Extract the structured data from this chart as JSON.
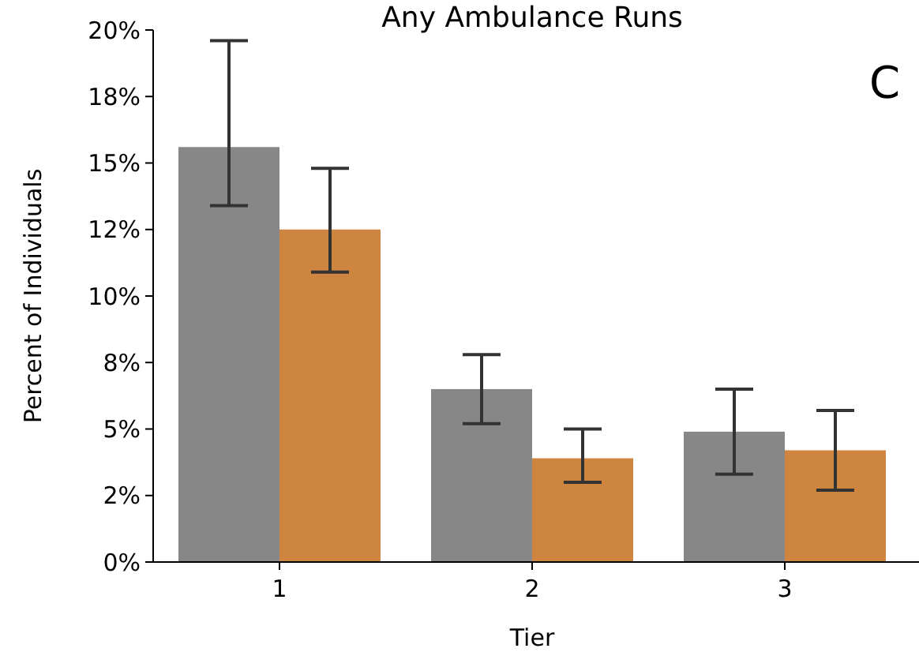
{
  "chart_data": {
    "type": "bar",
    "title": "Any Ambulance Runs",
    "xlabel": "Tier",
    "ylabel": "Percent of Individuals",
    "categories": [
      "1",
      "2",
      "3"
    ],
    "series": [
      {
        "color": "#878787",
        "values": [
          15.6,
          6.5,
          4.9
        ],
        "errors": [
          [
            13.4,
            19.6
          ],
          [
            5.2,
            7.8
          ],
          [
            3.3,
            6.5
          ]
        ]
      },
      {
        "color": "#cd8540",
        "values": [
          12.5,
          3.9,
          4.2
        ],
        "errors": [
          [
            10.9,
            14.8
          ],
          [
            3.0,
            5.0
          ],
          [
            2.7,
            5.7
          ]
        ]
      }
    ],
    "ylim": [
      0,
      20
    ],
    "yticks": [
      {
        "value": 0,
        "label": "0%"
      },
      {
        "value": 2.5,
        "label": "2%"
      },
      {
        "value": 5,
        "label": "5%"
      },
      {
        "value": 7.5,
        "label": "8%"
      },
      {
        "value": 10,
        "label": "10%"
      },
      {
        "value": 12.5,
        "label": "12%"
      },
      {
        "value": 15,
        "label": "15%"
      },
      {
        "value": 17.5,
        "label": "18%"
      },
      {
        "value": 20,
        "label": "20%"
      }
    ],
    "annotations": [
      "C"
    ],
    "grid": false
  }
}
